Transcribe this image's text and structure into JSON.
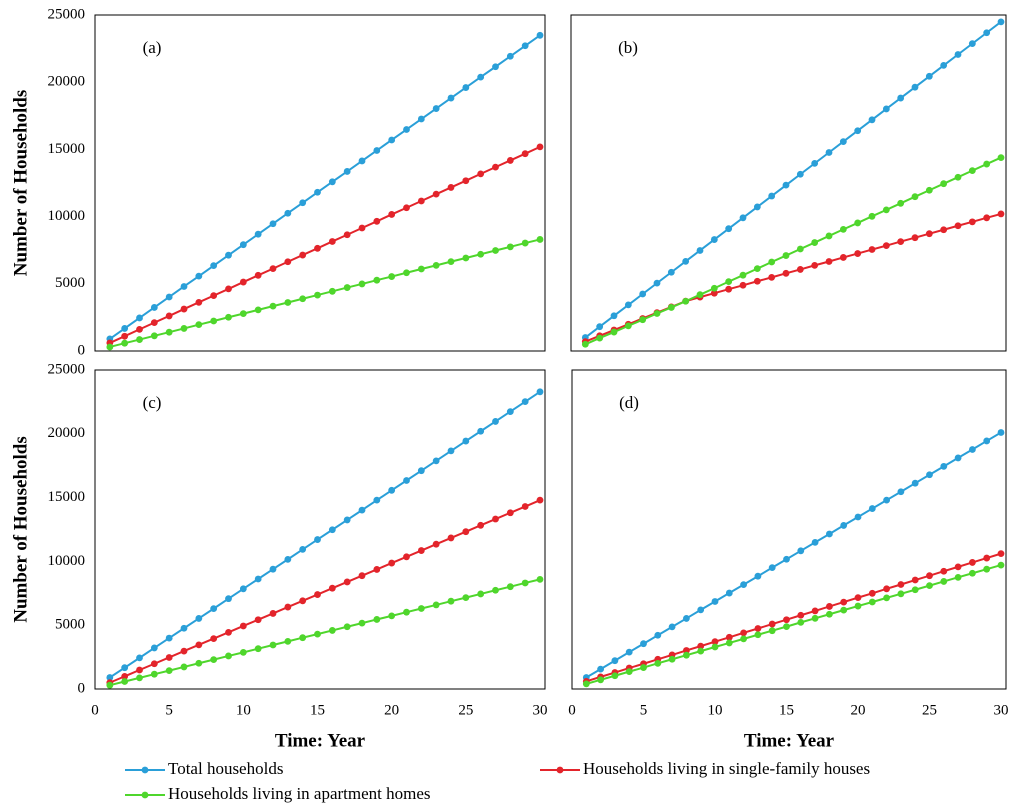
{
  "legend": [
    {
      "name": "Total households",
      "color": "#2a9fd8"
    },
    {
      "name": "Households living in single-family houses",
      "color": "#e3242b"
    },
    {
      "name": "Households living in apartment homes",
      "color": "#4fd62c"
    }
  ],
  "chart_data": [
    {
      "type": "line",
      "label": "(a)",
      "ylabel": "Number of Households",
      "x": [
        1,
        2,
        3,
        4,
        5,
        6,
        7,
        8,
        9,
        10,
        11,
        12,
        13,
        14,
        15,
        16,
        17,
        18,
        19,
        20,
        21,
        22,
        23,
        24,
        25,
        26,
        27,
        28,
        29,
        30
      ],
      "xlim": [
        0,
        30
      ],
      "ylim": [
        0,
        25000
      ],
      "yticks": [
        0,
        5000,
        10000,
        15000,
        20000,
        25000
      ],
      "series": [
        {
          "values": [
            900,
            1680,
            2460,
            3240,
            4020,
            4800,
            5570,
            6350,
            7130,
            7910,
            8690,
            9470,
            10250,
            11030,
            11810,
            12590,
            13360,
            14140,
            14920,
            15700,
            16480,
            17260,
            18040,
            18820,
            19600,
            20380,
            21150,
            21930,
            22710,
            23490
          ]
        },
        {
          "values": [
            600,
            1100,
            1610,
            2110,
            2610,
            3120,
            3620,
            4120,
            4620,
            5130,
            5630,
            6130,
            6640,
            7140,
            7640,
            8150,
            8650,
            9150,
            9650,
            10160,
            10660,
            11160,
            11670,
            12170,
            12670,
            13180,
            13680,
            14180,
            14680,
            15190
          ]
        },
        {
          "values": [
            300,
            580,
            850,
            1130,
            1400,
            1680,
            1960,
            2230,
            2510,
            2780,
            3060,
            3340,
            3610,
            3890,
            4160,
            4440,
            4720,
            4990,
            5270,
            5540,
            5820,
            6100,
            6370,
            6650,
            6920,
            7200,
            7480,
            7750,
            8030,
            8300
          ]
        }
      ]
    },
    {
      "type": "line",
      "label": "(b)",
      "x": [
        1,
        2,
        3,
        4,
        5,
        6,
        7,
        8,
        9,
        10,
        11,
        12,
        13,
        14,
        15,
        16,
        17,
        18,
        19,
        20,
        21,
        22,
        23,
        24,
        25,
        26,
        27,
        28,
        29,
        30
      ],
      "xlim": [
        0,
        30
      ],
      "ylim": [
        0,
        25000
      ],
      "series": [
        {
          "values": [
            1000,
            1810,
            2620,
            3430,
            4240,
            5050,
            5860,
            6670,
            7480,
            8290,
            9100,
            9910,
            10720,
            11530,
            12340,
            13150,
            13960,
            14770,
            15580,
            16390,
            17200,
            18010,
            18820,
            19630,
            20440,
            21250,
            22060,
            22870,
            23680,
            24490
          ]
        },
        {
          "values": [
            700,
            1130,
            1560,
            1990,
            2420,
            2850,
            3280,
            3710,
            4010,
            4300,
            4600,
            4890,
            5190,
            5480,
            5780,
            6070,
            6370,
            6660,
            6960,
            7250,
            7550,
            7840,
            8140,
            8430,
            8730,
            9020,
            9320,
            9610,
            9910,
            10200
          ]
        },
        {
          "values": [
            500,
            960,
            1410,
            1870,
            2330,
            2790,
            3240,
            3700,
            4190,
            4670,
            5160,
            5640,
            6130,
            6620,
            7100,
            7590,
            8070,
            8560,
            9050,
            9530,
            10020,
            10500,
            10990,
            11480,
            11960,
            12450,
            12930,
            13420,
            13910,
            14390
          ]
        }
      ]
    },
    {
      "type": "line",
      "label": "(c)",
      "ylabel": "Number of Households",
      "xlabel": "Time: Year",
      "x": [
        1,
        2,
        3,
        4,
        5,
        6,
        7,
        8,
        9,
        10,
        11,
        12,
        13,
        14,
        15,
        16,
        17,
        18,
        19,
        20,
        21,
        22,
        23,
        24,
        25,
        26,
        27,
        28,
        29,
        30
      ],
      "xlim": [
        0,
        30
      ],
      "xticks": [
        0,
        5,
        10,
        15,
        20,
        25,
        30
      ],
      "ylim": [
        0,
        25000
      ],
      "yticks": [
        0,
        5000,
        10000,
        15000,
        20000,
        25000
      ],
      "series": [
        {
          "values": [
            900,
            1670,
            2440,
            3220,
            3990,
            4760,
            5530,
            6300,
            7080,
            7850,
            8620,
            9390,
            10160,
            10940,
            11710,
            12480,
            13250,
            14020,
            14800,
            15570,
            16340,
            17110,
            17880,
            18660,
            19430,
            20200,
            20970,
            21740,
            22520,
            23290
          ]
        },
        {
          "values": [
            500,
            990,
            1490,
            1980,
            2470,
            2970,
            3460,
            3950,
            4440,
            4940,
            5430,
            5920,
            6420,
            6910,
            7400,
            7900,
            8390,
            8880,
            9370,
            9870,
            10360,
            10850,
            11350,
            11840,
            12330,
            12830,
            13320,
            13810,
            14300,
            14800
          ]
        },
        {
          "values": [
            300,
            590,
            870,
            1160,
            1440,
            1730,
            2020,
            2300,
            2590,
            2870,
            3160,
            3450,
            3730,
            4020,
            4300,
            4590,
            4880,
            5160,
            5450,
            5730,
            6020,
            6310,
            6590,
            6880,
            7160,
            7450,
            7740,
            8020,
            8310,
            8590
          ]
        }
      ]
    },
    {
      "type": "line",
      "label": "(d)",
      "xlabel": "Time: Year",
      "x": [
        1,
        2,
        3,
        4,
        5,
        6,
        7,
        8,
        9,
        10,
        11,
        12,
        13,
        14,
        15,
        16,
        17,
        18,
        19,
        20,
        21,
        22,
        23,
        24,
        25,
        26,
        27,
        28,
        29,
        30
      ],
      "xlim": [
        0,
        30
      ],
      "xticks": [
        0,
        5,
        10,
        15,
        20,
        25,
        30
      ],
      "ylim": [
        0,
        25000
      ],
      "series": [
        {
          "values": [
            900,
            1560,
            2220,
            2890,
            3550,
            4210,
            4870,
            5530,
            6200,
            6860,
            7520,
            8180,
            8840,
            9510,
            10170,
            10830,
            11490,
            12150,
            12820,
            13480,
            14140,
            14800,
            15460,
            16130,
            16790,
            17450,
            18110,
            18770,
            19440,
            20100
          ]
        },
        {
          "values": [
            600,
            950,
            1290,
            1640,
            1980,
            2330,
            2670,
            3020,
            3360,
            3710,
            4050,
            4400,
            4740,
            5090,
            5430,
            5780,
            6120,
            6470,
            6810,
            7160,
            7500,
            7850,
            8190,
            8540,
            8880,
            9230,
            9570,
            9920,
            10260,
            10610
          ]
        },
        {
          "values": [
            400,
            720,
            1040,
            1360,
            1680,
            2010,
            2330,
            2650,
            2970,
            3290,
            3610,
            3930,
            4250,
            4570,
            4890,
            5220,
            5540,
            5860,
            6180,
            6500,
            6820,
            7140,
            7460,
            7780,
            8100,
            8430,
            8750,
            9070,
            9390,
            9710
          ]
        }
      ]
    }
  ]
}
